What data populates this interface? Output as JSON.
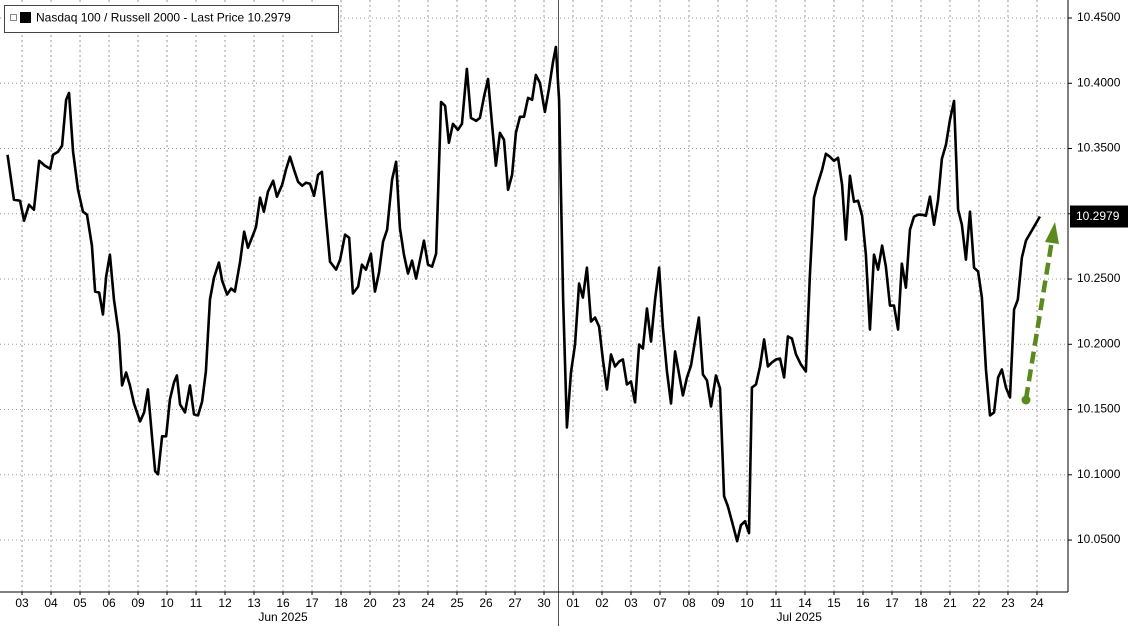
{
  "chart_data": {
    "type": "line",
    "ylim": [
      10.0102,
      10.4638
    ],
    "yticks": [
      {
        "value": 10.05,
        "label": "10.0500"
      },
      {
        "value": 10.1,
        "label": "10.1000"
      },
      {
        "value": 10.15,
        "label": "10.1500"
      },
      {
        "value": 10.2,
        "label": "10.2000"
      },
      {
        "value": 10.25,
        "label": "10.2500"
      },
      {
        "value": 10.3,
        "label": "10.3000"
      },
      {
        "value": 10.35,
        "label": "10.3500"
      },
      {
        "value": 10.4,
        "label": "10.4000"
      },
      {
        "value": 10.45,
        "label": "10.4500"
      }
    ],
    "xlim": [
      -0.26,
      36.57
    ],
    "xticks": [
      {
        "value": 0.5,
        "label": "03"
      },
      {
        "value": 1.5,
        "label": "04"
      },
      {
        "value": 2.5,
        "label": "05"
      },
      {
        "value": 3.5,
        "label": "06"
      },
      {
        "value": 4.5,
        "label": "09"
      },
      {
        "value": 5.5,
        "label": "10"
      },
      {
        "value": 6.5,
        "label": "11"
      },
      {
        "value": 7.5,
        "label": "12"
      },
      {
        "value": 8.5,
        "label": "13"
      },
      {
        "value": 9.5,
        "label": "16"
      },
      {
        "value": 10.5,
        "label": "17"
      },
      {
        "value": 11.5,
        "label": "18"
      },
      {
        "value": 12.5,
        "label": "20"
      },
      {
        "value": 13.5,
        "label": "23"
      },
      {
        "value": 14.5,
        "label": "24"
      },
      {
        "value": 15.5,
        "label": "25"
      },
      {
        "value": 16.5,
        "label": "26"
      },
      {
        "value": 17.5,
        "label": "27"
      },
      {
        "value": 18.5,
        "label": "30"
      },
      {
        "value": 19.5,
        "label": "01"
      },
      {
        "value": 20.5,
        "label": "02"
      },
      {
        "value": 21.5,
        "label": "03"
      },
      {
        "value": 22.5,
        "label": "07"
      },
      {
        "value": 23.5,
        "label": "08"
      },
      {
        "value": 24.5,
        "label": "09"
      },
      {
        "value": 25.5,
        "label": "10"
      },
      {
        "value": 26.5,
        "label": "11"
      },
      {
        "value": 27.5,
        "label": "14"
      },
      {
        "value": 28.5,
        "label": "15"
      },
      {
        "value": 29.5,
        "label": "16"
      },
      {
        "value": 30.5,
        "label": "17"
      },
      {
        "value": 31.5,
        "label": "18"
      },
      {
        "value": 32.5,
        "label": "21"
      },
      {
        "value": 33.5,
        "label": "22"
      },
      {
        "value": 34.5,
        "label": "23"
      },
      {
        "value": 35.5,
        "label": "24"
      }
    ],
    "month_labels": [
      {
        "value": 9.5,
        "label": "Jun 2025"
      },
      {
        "value": 27.3,
        "label": "Jul 2025"
      }
    ],
    "grid": true,
    "legend": "top-left",
    "series": [
      {
        "name": "Nasdaq 100 / Russell 2000 - Last Price 10.2979",
        "color": "#000000",
        "x": [
          0,
          0.22,
          0.43,
          0.57,
          0.74,
          0.91,
          1.09,
          1.29,
          1.47,
          1.57,
          1.74,
          1.88,
          2.02,
          2.12,
          2.26,
          2.43,
          2.6,
          2.74,
          2.91,
          3.02,
          3.16,
          3.29,
          3.4,
          3.53,
          3.67,
          3.84,
          3.95,
          4.09,
          4.22,
          4.36,
          4.57,
          4.71,
          4.84,
          4.98,
          5.09,
          5.19,
          5.33,
          5.47,
          5.6,
          5.74,
          5.84,
          5.95,
          6.12,
          6.29,
          6.43,
          6.57,
          6.71,
          6.84,
          6.98,
          7.12,
          7.29,
          7.4,
          7.57,
          7.71,
          7.84,
          8.02,
          8.16,
          8.29,
          8.47,
          8.57,
          8.71,
          8.84,
          8.98,
          9.16,
          9.29,
          9.47,
          9.6,
          9.74,
          9.88,
          10.02,
          10.16,
          10.29,
          10.43,
          10.57,
          10.71,
          10.84,
          10.98,
          11.12,
          11.33,
          11.47,
          11.64,
          11.78,
          11.91,
          12.09,
          12.22,
          12.36,
          12.53,
          12.67,
          12.81,
          12.95,
          13.09,
          13.26,
          13.4,
          13.53,
          13.67,
          13.81,
          13.95,
          14.09,
          14.22,
          14.36,
          14.5,
          14.64,
          14.78,
          14.95,
          15.09,
          15.22,
          15.36,
          15.53,
          15.67,
          15.84,
          15.98,
          16.16,
          16.29,
          16.43,
          16.57,
          16.71,
          16.84,
          16.98,
          17.12,
          17.26,
          17.4,
          17.53,
          17.67,
          17.81,
          17.95,
          18.09,
          18.22,
          18.36,
          18.53,
          18.67,
          18.81,
          18.91,
          19.02,
          19.16,
          19.29,
          19.43,
          19.57,
          19.71,
          19.84,
          19.98,
          20.12,
          20.26,
          20.4,
          20.53,
          20.67,
          20.81,
          20.95,
          21.09,
          21.22,
          21.36,
          21.5,
          21.64,
          21.78,
          21.91,
          22.05,
          22.19,
          22.33,
          22.47,
          22.6,
          22.74,
          22.88,
          23.02,
          23.16,
          23.29,
          23.43,
          23.57,
          23.71,
          23.84,
          23.98,
          24.12,
          24.26,
          24.43,
          24.57,
          24.71,
          24.84,
          24.98,
          25.16,
          25.29,
          25.43,
          25.57,
          25.67,
          25.81,
          25.95,
          26.09,
          26.22,
          26.36,
          26.5,
          26.64,
          26.78,
          26.91,
          27.05,
          27.19,
          27.36,
          27.53,
          27.67,
          27.81,
          27.95,
          28.09,
          28.22,
          28.36,
          28.5,
          28.64,
          28.78,
          28.91,
          29.05,
          29.19,
          29.33,
          29.47,
          29.6,
          29.74,
          29.88,
          30.02,
          30.16,
          30.29,
          30.43,
          30.57,
          30.71,
          30.84,
          30.98,
          31.12,
          31.26,
          31.4,
          31.53,
          31.67,
          31.81,
          31.95,
          32.09,
          32.22,
          32.36,
          32.5,
          32.64,
          32.78,
          32.91,
          33.05,
          33.19,
          33.33,
          33.47,
          33.6,
          33.74,
          33.88,
          34.02,
          34.16,
          34.29,
          34.43,
          34.57,
          34.71,
          34.84,
          34.98,
          35.12,
          35.26,
          35.4,
          35.6
        ],
        "values": [
          10.3452,
          10.3108,
          10.31,
          10.2947,
          10.3069,
          10.3031,
          10.3406,
          10.3368,
          10.3345,
          10.3452,
          10.3475,
          10.3521,
          10.3873,
          10.3926,
          10.3475,
          10.3184,
          10.3016,
          10.2993,
          10.2756,
          10.2404,
          10.2396,
          10.2228,
          10.2519,
          10.2687,
          10.2343,
          10.2075,
          10.1685,
          10.1784,
          10.1685,
          10.1547,
          10.1409,
          10.1478,
          10.1654,
          10.1295,
          10.1027,
          10.1004,
          10.1295,
          10.1295,
          10.1578,
          10.1708,
          10.1761,
          10.1539,
          10.1478,
          10.1685,
          10.1463,
          10.1455,
          10.1562,
          10.1792,
          10.2343,
          10.2511,
          10.2626,
          10.2488,
          10.2381,
          10.2427,
          10.2404,
          10.2633,
          10.2863,
          10.274,
          10.284,
          10.2901,
          10.3123,
          10.3016,
          10.3169,
          10.3253,
          10.3131,
          10.3222,
          10.3337,
          10.3437,
          10.3337,
          10.3245,
          10.3215,
          10.3238,
          10.323,
          10.3138,
          10.3299,
          10.3322,
          10.297,
          10.2633,
          10.2572,
          10.2649,
          10.284,
          10.2817,
          10.2389,
          10.2442,
          10.261,
          10.2572,
          10.2695,
          10.2404,
          10.2549,
          10.2786,
          10.2878,
          10.3261,
          10.3398,
          10.2893,
          10.2687,
          10.2542,
          10.2641,
          10.2503,
          10.2641,
          10.2794,
          10.261,
          10.2595,
          10.2695,
          10.3857,
          10.3827,
          10.3544,
          10.3689,
          10.3643,
          10.3689,
          10.411,
          10.3735,
          10.3712,
          10.3735,
          10.3896,
          10.4033,
          10.3681,
          10.3368,
          10.362,
          10.3567,
          10.3184,
          10.3299,
          10.362,
          10.3743,
          10.3743,
          10.3888,
          10.3873,
          10.4064,
          10.4003,
          10.3781,
          10.3957,
          10.4163,
          10.4278,
          10.3873,
          10.2343,
          10.1363,
          10.1784,
          10.1998,
          10.2465,
          10.2358,
          10.2587,
          10.2174,
          10.2205,
          10.2136,
          10.1884,
          10.1654,
          10.1922,
          10.183,
          10.1868,
          10.1884,
          10.1692,
          10.1715,
          10.1555,
          10.1998,
          10.1968,
          10.2274,
          10.2021,
          10.2343,
          10.2587,
          10.2128,
          10.1792,
          10.1547,
          10.1945,
          10.1769,
          10.1608,
          10.1746,
          10.1838,
          10.2029,
          10.2205,
          10.1769,
          10.1723,
          10.1524,
          10.1761,
          10.1662,
          10.0836,
          10.0759,
          10.0644,
          10.0491,
          10.0614,
          10.0644,
          10.0553,
          10.1669,
          10.1692,
          10.183,
          10.2037,
          10.183,
          10.1861,
          10.1884,
          10.1891,
          10.1746,
          10.206,
          10.2044,
          10.1922,
          10.1845,
          10.1792,
          10.2534,
          10.3123,
          10.3238,
          10.3337,
          10.346,
          10.3437,
          10.3406,
          10.3429,
          10.3222,
          10.2802,
          10.3291,
          10.3092,
          10.31,
          10.2985,
          10.2687,
          10.2113,
          10.2687,
          10.2572,
          10.2756,
          10.2595,
          10.2297,
          10.2297,
          10.2113,
          10.2618,
          10.2434,
          10.2878,
          10.2978,
          10.2993,
          10.2993,
          10.2985,
          10.3131,
          10.2916,
          10.3108,
          10.3421,
          10.3528,
          10.372,
          10.3865,
          10.3031,
          10.2916,
          10.2649,
          10.3016,
          10.2587,
          10.2557,
          10.2358,
          10.1807,
          10.1455,
          10.1478,
          10.1746,
          10.1807,
          10.1669,
          10.1593,
          10.2266,
          10.2343,
          10.2664,
          10.2794,
          10.2848,
          10.2901,
          10.2979
        ]
      }
    ]
  }
}
